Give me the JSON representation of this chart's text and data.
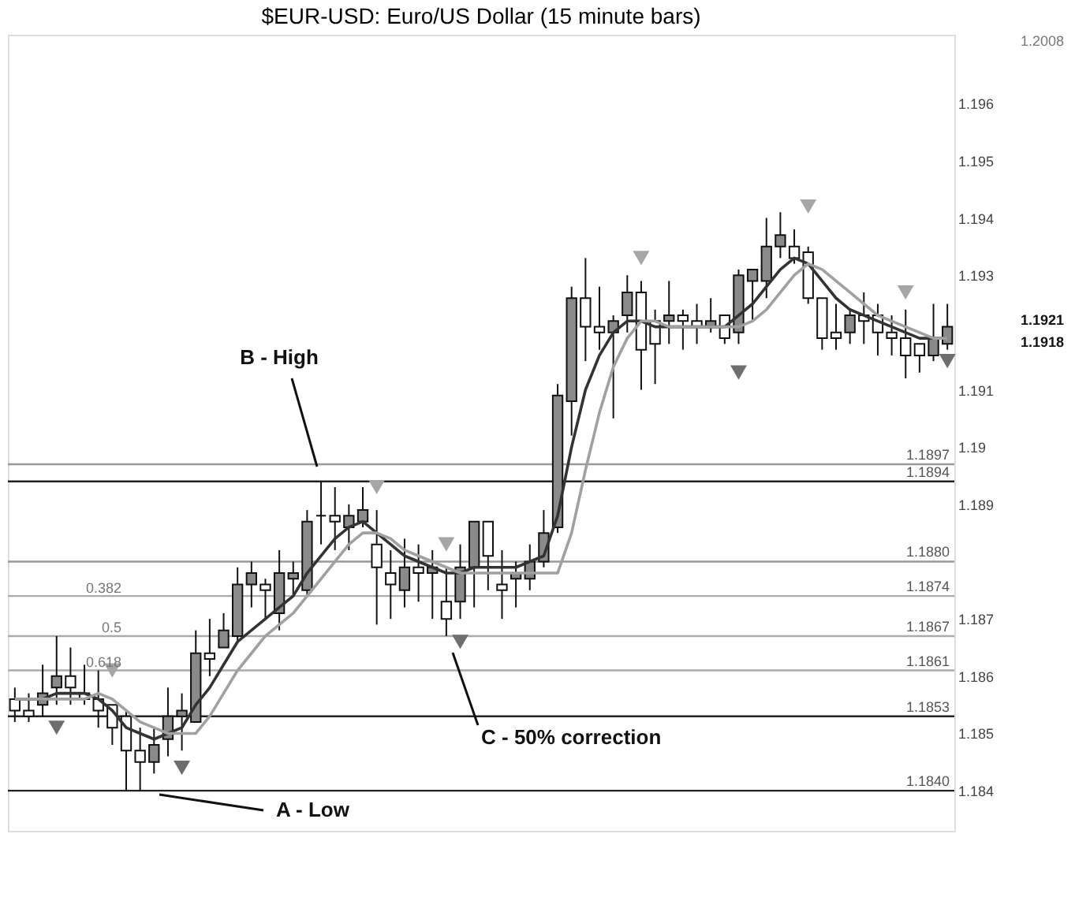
{
  "chart_data": {
    "type": "candlestick",
    "title": "$EUR-USD:  Euro/US Dollar  (15 minute bars)",
    "categories": [
      null,
      null,
      null,
      null,
      null,
      null,
      null,
      null,
      null,
      null,
      null,
      null,
      null,
      null,
      null,
      null,
      null,
      null,
      null,
      null,
      null,
      null,
      null,
      null,
      null,
      null,
      null,
      null,
      null,
      null,
      null,
      null,
      null,
      null,
      null,
      null,
      null,
      null,
      null,
      null,
      null,
      null,
      null,
      null,
      null,
      null,
      null,
      null,
      null,
      null,
      null,
      null,
      null,
      null,
      null,
      null,
      null,
      null,
      null,
      null,
      null,
      null,
      null,
      null,
      null,
      null,
      null,
      null
    ],
    "ohlc": [
      [
        1.1856,
        1.1858,
        1.1852,
        1.1854
      ],
      [
        1.1854,
        1.1857,
        1.1852,
        1.1853
      ],
      [
        1.1855,
        1.1862,
        1.1853,
        1.1857
      ],
      [
        1.1858,
        1.1867,
        1.1855,
        1.186
      ],
      [
        1.186,
        1.1865,
        1.1855,
        1.1858
      ],
      [
        1.1857,
        1.1862,
        1.1855,
        1.1856
      ],
      [
        1.1856,
        1.1861,
        1.1851,
        1.1854
      ],
      [
        1.1855,
        1.1855,
        1.1848,
        1.1851
      ],
      [
        1.1853,
        1.1854,
        1.184,
        1.1847
      ],
      [
        1.1847,
        1.1851,
        1.184,
        1.1845
      ],
      [
        1.1845,
        1.1851,
        1.1843,
        1.1848
      ],
      [
        1.1849,
        1.1858,
        1.1846,
        1.1853
      ],
      [
        1.1853,
        1.1857,
        1.1847,
        1.1854
      ],
      [
        1.1852,
        1.1868,
        1.1852,
        1.1864
      ],
      [
        1.1864,
        1.187,
        1.186,
        1.1863
      ],
      [
        1.1865,
        1.1871,
        1.1865,
        1.1868
      ],
      [
        1.1867,
        1.1879,
        1.1866,
        1.1876
      ],
      [
        1.1876,
        1.188,
        1.1872,
        1.1878
      ],
      [
        1.1876,
        1.1877,
        1.187,
        1.1875
      ],
      [
        1.1871,
        1.1882,
        1.1868,
        1.1878
      ],
      [
        1.1877,
        1.188,
        1.1874,
        1.1878
      ],
      [
        1.1875,
        1.1889,
        1.1874,
        1.1887
      ],
      [
        1.1888,
        1.1894,
        1.1883,
        1.1888
      ],
      [
        1.1888,
        1.1893,
        1.1882,
        1.1887
      ],
      [
        1.1886,
        1.189,
        1.1882,
        1.1888
      ],
      [
        1.1887,
        1.1893,
        1.1886,
        1.1889
      ],
      [
        1.1883,
        1.1889,
        1.1869,
        1.1879
      ],
      [
        1.1878,
        1.1882,
        1.187,
        1.1876
      ],
      [
        1.1875,
        1.1884,
        1.1872,
        1.1879
      ],
      [
        1.1879,
        1.1883,
        1.1873,
        1.1878
      ],
      [
        1.1878,
        1.1882,
        1.187,
        1.1879
      ],
      [
        1.1873,
        1.1879,
        1.1867,
        1.187
      ],
      [
        1.1873,
        1.1883,
        1.187,
        1.1879
      ],
      [
        1.1879,
        1.1887,
        1.1872,
        1.1887
      ],
      [
        1.1887,
        1.1887,
        1.1875,
        1.1881
      ],
      [
        1.1876,
        1.1882,
        1.187,
        1.1875
      ],
      [
        1.1877,
        1.188,
        1.1872,
        1.1878
      ],
      [
        1.1877,
        1.1883,
        1.1875,
        1.188
      ],
      [
        1.188,
        1.1889,
        1.1879,
        1.1885
      ],
      [
        1.1886,
        1.1911,
        1.1885,
        1.1909
      ],
      [
        1.1908,
        1.1928,
        1.1902,
        1.1926
      ],
      [
        1.1926,
        1.1933,
        1.1915,
        1.1921
      ],
      [
        1.1921,
        1.1928,
        1.1917,
        1.192
      ],
      [
        1.192,
        1.1923,
        1.1905,
        1.1922
      ],
      [
        1.1923,
        1.193,
        1.192,
        1.1927
      ],
      [
        1.1927,
        1.1929,
        1.191,
        1.1917
      ],
      [
        1.1922,
        1.1924,
        1.1911,
        1.1918
      ],
      [
        1.1922,
        1.1929,
        1.1918,
        1.1923
      ],
      [
        1.1923,
        1.1924,
        1.1917,
        1.1922
      ],
      [
        1.1922,
        1.1925,
        1.1918,
        1.1921
      ],
      [
        1.1921,
        1.1926,
        1.192,
        1.1922
      ],
      [
        1.1923,
        1.1923,
        1.1918,
        1.1919
      ],
      [
        1.192,
        1.1931,
        1.1918,
        1.193
      ],
      [
        1.1929,
        1.1931,
        1.1922,
        1.1931
      ],
      [
        1.1929,
        1.194,
        1.1926,
        1.1935
      ],
      [
        1.1935,
        1.1941,
        1.1933,
        1.1937
      ],
      [
        1.1935,
        1.1938,
        1.1932,
        1.1933
      ],
      [
        1.1934,
        1.1935,
        1.1925,
        1.1926
      ],
      [
        1.1926,
        1.1926,
        1.1917,
        1.1919
      ],
      [
        1.192,
        1.1925,
        1.1917,
        1.1919
      ],
      [
        1.192,
        1.1924,
        1.1918,
        1.1923
      ],
      [
        1.1923,
        1.1927,
        1.1918,
        1.1922
      ],
      [
        1.1923,
        1.1925,
        1.1916,
        1.192
      ],
      [
        1.192,
        1.1923,
        1.1916,
        1.1919
      ],
      [
        1.1919,
        1.1924,
        1.1912,
        1.1916
      ],
      [
        1.1918,
        1.1918,
        1.1913,
        1.1916
      ],
      [
        1.1916,
        1.1925,
        1.1915,
        1.1919
      ],
      [
        1.1918,
        1.1925,
        1.1917,
        1.1921
      ]
    ],
    "series": [
      {
        "type": "line",
        "color": "#333333",
        "values": [
          1.1856,
          1.1856,
          1.1856,
          1.1857,
          1.1857,
          1.1857,
          1.1856,
          1.1854,
          1.1851,
          1.185,
          1.1849,
          1.185,
          1.1851,
          1.1855,
          1.1858,
          1.1862,
          1.1866,
          1.1868,
          1.187,
          1.1872,
          1.1874,
          1.1878,
          1.1881,
          1.1884,
          1.1886,
          1.1887,
          1.1885,
          1.1883,
          1.1881,
          1.188,
          1.1879,
          1.1878,
          1.1878,
          1.1879,
          1.1879,
          1.1879,
          1.1879,
          1.188,
          1.1881,
          1.1888,
          1.19,
          1.191,
          1.1916,
          1.192,
          1.1922,
          1.1922,
          1.1921,
          1.1921,
          1.1921,
          1.1921,
          1.1921,
          1.1921,
          1.1923,
          1.1925,
          1.1928,
          1.1931,
          1.1933,
          1.1932,
          1.1929,
          1.1926,
          1.1924,
          1.1923,
          1.1922,
          1.1921,
          1.192,
          1.1919,
          1.1919,
          1.1919
        ]
      },
      {
        "type": "line",
        "color": "#a0a0a0",
        "values": [
          1.1856,
          1.1856,
          1.1856,
          1.1856,
          1.1856,
          1.1856,
          1.1857,
          1.1856,
          1.1854,
          1.1852,
          1.1851,
          1.185,
          1.185,
          1.185,
          1.1853,
          1.1857,
          1.1861,
          1.1864,
          1.1867,
          1.1869,
          1.1871,
          1.1874,
          1.1877,
          1.188,
          1.1883,
          1.1885,
          1.1885,
          1.1884,
          1.1882,
          1.1881,
          1.188,
          1.1879,
          1.1878,
          1.1878,
          1.1878,
          1.1878,
          1.1878,
          1.1878,
          1.1878,
          1.1878,
          1.1885,
          1.1896,
          1.1906,
          1.1914,
          1.1919,
          1.1922,
          1.1922,
          1.1921,
          1.1921,
          1.1921,
          1.1921,
          1.1921,
          1.1921,
          1.1922,
          1.1924,
          1.1927,
          1.193,
          1.1932,
          1.1931,
          1.1929,
          1.1927,
          1.1925,
          1.1923,
          1.1922,
          1.1921,
          1.192,
          1.1919,
          1.1919
        ]
      },
      {
        "type": "scatter",
        "color": "#a6a6a6",
        "marker": "triangle",
        "values": [
          null,
          null,
          null,
          null,
          null,
          null,
          null,
          1.1861,
          null,
          null,
          null,
          null,
          null,
          null,
          null,
          null,
          null,
          null,
          null,
          null,
          null,
          null,
          null,
          null,
          null,
          null,
          1.1893,
          null,
          null,
          null,
          null,
          1.1883,
          null,
          null,
          null,
          null,
          null,
          null,
          null,
          null,
          null,
          null,
          null,
          null,
          null,
          1.1933,
          null,
          null,
          null,
          null,
          null,
          null,
          null,
          null,
          null,
          null,
          null,
          1.1942,
          null,
          null,
          null,
          null,
          null,
          null,
          1.1927,
          null,
          null,
          null
        ]
      },
      {
        "type": "scatter",
        "color": "#6e6e6e",
        "marker": "triangle",
        "values": [
          null,
          null,
          null,
          1.1851,
          null,
          null,
          null,
          null,
          null,
          null,
          null,
          null,
          1.1844,
          null,
          null,
          null,
          null,
          null,
          null,
          null,
          null,
          null,
          null,
          null,
          null,
          null,
          null,
          null,
          null,
          null,
          null,
          null,
          1.1866,
          null,
          null,
          null,
          null,
          null,
          null,
          null,
          null,
          null,
          null,
          null,
          null,
          null,
          null,
          null,
          null,
          null,
          null,
          null,
          1.1913,
          null,
          null,
          null,
          null,
          null,
          null,
          null,
          null,
          null,
          null,
          null,
          null,
          null,
          null,
          1.1915
        ]
      }
    ],
    "ylim": [
      1.1833,
      1.1972
    ],
    "yticks": [
      1.184,
      1.185,
      1.186,
      1.187,
      1.189,
      1.19,
      1.191,
      1.193,
      1.194,
      1.195,
      1.196
    ],
    "tick_labels": "y",
    "grid": false,
    "ref_lines": [
      {
        "axis": "y",
        "value": 1.1894,
        "label": "1.1894",
        "color": "#222222"
      },
      {
        "axis": "y",
        "value": 1.1874,
        "label": "1.1874",
        "color": "#aaaaaa"
      },
      {
        "axis": "y",
        "value": 1.1867,
        "label": "1.1867",
        "color": "#aaaaaa"
      },
      {
        "axis": "y",
        "value": 1.1861,
        "label": "1.1861",
        "color": "#aaaaaa"
      },
      {
        "axis": "y",
        "value": 1.184,
        "label": "1.1840",
        "color": "#222222"
      },
      {
        "axis": "y",
        "value": 1.1897,
        "label": "1.1897",
        "color": "#999999"
      },
      {
        "axis": "y",
        "value": 1.188,
        "label": "1.1880",
        "color": "#999999"
      },
      {
        "axis": "y",
        "value": 1.1853,
        "label": "1.1853",
        "color": "#222222"
      }
    ],
    "annotations": [
      "B - High",
      "A - Low",
      "C - 50% correction",
      "0.382",
      "0.5",
      "0.618",
      "1.2008",
      "1.1921",
      "1.1918"
    ]
  }
}
